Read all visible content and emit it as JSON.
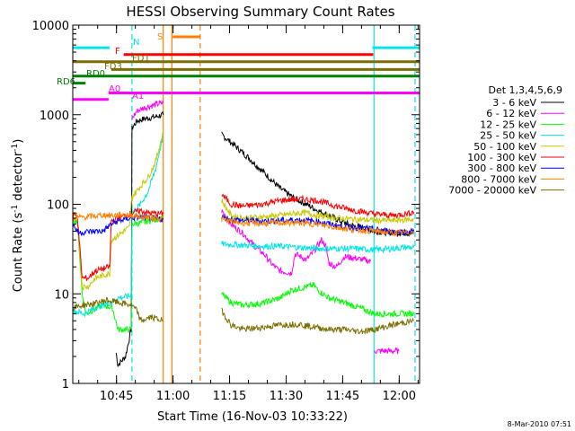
{
  "chart_data": {
    "type": "line",
    "title": "HESSI Observing Summary Count Rates",
    "xlabel": "Start Time (16-Nov-03 10:33:22)",
    "ylabel": "Count Rate (s⁻¹ detector⁻¹)",
    "footer": "8-Mar-2010 07:51",
    "x_units": "minutes after 10:33:22",
    "xlim": [
      0,
      92
    ],
    "ylim": [
      1,
      10000
    ],
    "y_scale": "log",
    "x_ticks": [
      {
        "label": "10:45",
        "t": 11.6
      },
      {
        "label": "11:00",
        "t": 26.6
      },
      {
        "label": "11:15",
        "t": 41.6
      },
      {
        "label": "11:30",
        "t": 56.6
      },
      {
        "label": "11:45",
        "t": 71.6
      },
      {
        "label": "12:00",
        "t": 86.6
      }
    ],
    "y_ticks": [
      {
        "label": "1",
        "v": 1
      },
      {
        "label": "10",
        "v": 10
      },
      {
        "label": "100",
        "v": 100
      },
      {
        "label": "1000",
        "v": 1000
      },
      {
        "label": "10000",
        "v": 10000
      }
    ],
    "legend": {
      "position": "right",
      "title": "Det 1,3,4,5,6,9",
      "entries": [
        "3 - 6 keV",
        "6 - 12 keV",
        "12 - 25 keV",
        "25 - 50 keV",
        "50 - 100 keV",
        "100 - 300 keV",
        "300 - 800 keV",
        "800 - 7000 keV",
        "7000 - 20000 keV"
      ]
    },
    "flag_bars": [
      {
        "label": "N",
        "color": "#00e5e5",
        "value": 5600,
        "segments": [
          [
            0,
            9.8
          ],
          [
            79.5,
            92
          ]
        ]
      },
      {
        "label": "S",
        "color": "#ff8000",
        "value": 7400,
        "segments": [
          [
            26.5,
            33.9
          ]
        ]
      },
      {
        "label": "F",
        "color": "#ff0000",
        "value": 4700,
        "segments": [
          [
            13.5,
            79.7
          ]
        ]
      },
      {
        "label": "FD1",
        "color": "#7a6e00",
        "value": 3900,
        "segments": [
          [
            0,
            92
          ]
        ]
      },
      {
        "label": "FD3",
        "color": "#7a6e00",
        "value": 3200,
        "segments": [
          [
            10.2,
            92
          ]
        ]
      },
      {
        "label": "RD0",
        "color": "#008000",
        "value": 2700,
        "segments": [
          [
            0,
            92
          ]
        ]
      },
      {
        "label": "RD6",
        "color": "#008000",
        "value": 2250,
        "segments": [
          [
            0,
            3.4
          ]
        ]
      },
      {
        "label": "A0",
        "color": "#ff00ff",
        "value": 1750,
        "segments": [
          [
            9.5,
            92
          ]
        ]
      },
      {
        "label": "A1",
        "color": "#ff00ff",
        "value": 1480,
        "segments": [
          [
            0,
            9.5
          ]
        ]
      }
    ],
    "vertical_markers": [
      {
        "t": 15.7,
        "color": "#00e5e5",
        "style": "dashed"
      },
      {
        "t": 24.0,
        "color": "#ff8000",
        "style": "solid"
      },
      {
        "t": 26.3,
        "color": "#ff8000",
        "style": "solid"
      },
      {
        "t": 33.8,
        "color": "#ff8000",
        "style": "dashed"
      },
      {
        "t": 79.9,
        "color": "#00e5e5",
        "style": "solid"
      },
      {
        "t": 90.8,
        "color": "#00e5e5",
        "style": "dashed"
      }
    ],
    "series": [
      {
        "color": "#000000",
        "points": [
          [
            11.5,
            2.2
          ],
          [
            12,
            1.6
          ],
          [
            14,
            2
          ],
          [
            15.5,
            4
          ],
          [
            15.7,
            700
          ],
          [
            17,
            850
          ],
          [
            19,
            900
          ],
          [
            22,
            950
          ],
          [
            24,
            1000
          ],
          null,
          [
            39.5,
            600
          ],
          [
            43,
            450
          ],
          [
            47,
            320
          ],
          [
            51,
            220
          ],
          [
            55,
            150
          ],
          [
            59,
            115
          ],
          [
            62,
            100
          ],
          [
            65,
            85
          ],
          [
            68,
            75
          ],
          [
            71,
            65
          ],
          [
            74,
            58
          ],
          [
            77,
            55
          ],
          [
            80,
            50
          ],
          [
            85,
            48
          ],
          [
            88,
            48
          ],
          [
            90.5,
            47
          ]
        ]
      },
      {
        "color": "#ff00ff",
        "points": [
          [
            15.7,
            900
          ],
          [
            17,
            1100
          ],
          [
            19,
            1200
          ],
          [
            22,
            1300
          ],
          [
            24,
            1350
          ],
          null,
          [
            39.5,
            85
          ],
          [
            42,
            60
          ],
          [
            45,
            48
          ],
          [
            48,
            35
          ],
          [
            51,
            27
          ],
          [
            53,
            21
          ],
          [
            55,
            18
          ],
          [
            58,
            17
          ],
          [
            59,
            28
          ],
          [
            62,
            24
          ],
          [
            64,
            30
          ],
          [
            66,
            40
          ],
          [
            67,
            35
          ],
          [
            68,
            22
          ],
          [
            70,
            20
          ],
          [
            72,
            26
          ],
          [
            75,
            25
          ],
          [
            77,
            24
          ],
          [
            79,
            23
          ],
          null,
          [
            80,
            2.3
          ],
          [
            85,
            2.3
          ],
          [
            86.5,
            2.3
          ]
        ]
      },
      {
        "color": "#00ff00",
        "points": [
          [
            0,
            68
          ],
          [
            1.2,
            65
          ],
          [
            2.5,
            10
          ],
          [
            3.5,
            6
          ],
          [
            8,
            7.5
          ],
          [
            10.5,
            7
          ],
          [
            12,
            4
          ],
          [
            15.5,
            4
          ],
          [
            15.7,
            60
          ],
          [
            18,
            62
          ],
          [
            20,
            65
          ],
          [
            22,
            68
          ],
          [
            24,
            70
          ],
          null,
          [
            39.5,
            10
          ],
          [
            42,
            8
          ],
          [
            45,
            7.5
          ],
          [
            50,
            7.8
          ],
          [
            55,
            9
          ],
          [
            58,
            11
          ],
          [
            62,
            12
          ],
          [
            64,
            12.5
          ],
          [
            65,
            11
          ],
          [
            68,
            9
          ],
          [
            72,
            8
          ],
          [
            76,
            7
          ],
          [
            80,
            6
          ],
          [
            85,
            6
          ],
          [
            88,
            6
          ],
          [
            90.5,
            6
          ]
        ]
      },
      {
        "color": "#00e5e5",
        "points": [
          [
            0,
            6.5
          ],
          [
            3,
            6
          ],
          [
            6,
            7
          ],
          [
            8,
            7.5
          ],
          [
            10,
            8
          ],
          [
            12,
            9
          ],
          [
            15.5,
            9.5
          ],
          [
            15.7,
            80
          ],
          [
            18,
            100
          ],
          [
            20,
            140
          ],
          [
            22,
            250
          ],
          [
            24,
            600
          ],
          null,
          [
            39.5,
            36
          ],
          [
            45,
            35
          ],
          [
            50,
            34
          ],
          [
            55,
            34
          ],
          [
            60,
            33
          ],
          [
            65,
            32
          ],
          [
            70,
            32
          ],
          [
            75,
            32
          ],
          [
            80,
            31
          ],
          [
            85,
            32
          ],
          [
            88,
            33
          ],
          [
            90.5,
            33
          ]
        ]
      },
      {
        "color": "#c8c800",
        "points": [
          [
            0,
            75
          ],
          [
            1.2,
            74
          ],
          [
            2.5,
            12
          ],
          [
            4,
            12
          ],
          [
            6,
            15
          ],
          [
            8,
            16
          ],
          [
            9.8,
            17
          ],
          [
            10.2,
            40
          ],
          [
            12,
            45
          ],
          [
            15,
            55
          ],
          [
            15.7,
            120
          ],
          [
            18,
            160
          ],
          [
            20,
            200
          ],
          [
            22,
            300
          ],
          [
            24,
            650
          ],
          null,
          [
            39.5,
            110
          ],
          [
            42,
            75
          ],
          [
            45,
            70
          ],
          [
            50,
            72
          ],
          [
            55,
            75
          ],
          [
            58,
            78
          ],
          [
            60,
            80
          ],
          [
            62,
            80
          ],
          [
            65,
            75
          ],
          [
            70,
            70
          ],
          [
            75,
            68
          ],
          [
            80,
            66
          ],
          [
            85,
            66
          ],
          [
            88,
            67
          ],
          [
            90.5,
            68
          ]
        ]
      },
      {
        "color": "#ff0000",
        "points": [
          [
            0,
            75
          ],
          [
            1.2,
            75
          ],
          [
            2.5,
            15
          ],
          [
            4,
            15
          ],
          [
            6,
            18
          ],
          [
            8,
            19
          ],
          [
            9.8,
            20
          ],
          [
            10.2,
            65
          ],
          [
            12,
            70
          ],
          [
            15,
            78
          ],
          [
            15.7,
            80
          ],
          [
            18,
            85
          ],
          [
            20,
            80
          ],
          [
            24,
            78
          ],
          null,
          [
            39.5,
            130
          ],
          [
            42,
            100
          ],
          [
            45,
            95
          ],
          [
            50,
            100
          ],
          [
            55,
            110
          ],
          [
            60,
            115
          ],
          [
            65,
            110
          ],
          [
            70,
            95
          ],
          [
            75,
            85
          ],
          [
            80,
            78
          ],
          [
            85,
            75
          ],
          [
            88,
            78
          ],
          [
            90.5,
            82
          ]
        ]
      },
      {
        "color": "#0000ff",
        "points": [
          [
            0,
            60
          ],
          [
            1.5,
            48
          ],
          [
            3,
            49
          ],
          [
            6,
            50
          ],
          [
            8,
            50
          ],
          [
            10.2,
            60
          ],
          [
            12,
            65
          ],
          [
            15,
            70
          ],
          [
            18,
            72
          ],
          [
            20,
            70
          ],
          [
            24,
            68
          ],
          null,
          [
            39.5,
            72
          ],
          [
            42,
            68
          ],
          [
            45,
            66
          ],
          [
            50,
            65
          ],
          [
            55,
            66
          ],
          [
            60,
            67
          ],
          [
            65,
            64
          ],
          [
            70,
            58
          ],
          [
            75,
            55
          ],
          [
            80,
            52
          ],
          [
            85,
            50
          ],
          [
            88,
            49
          ],
          [
            90.5,
            50
          ]
        ]
      },
      {
        "color": "#ff8000",
        "points": [
          [
            0,
            70
          ],
          [
            3,
            72
          ],
          [
            6,
            74
          ],
          [
            8,
            76
          ],
          [
            10.2,
            75
          ],
          [
            12,
            76
          ],
          [
            15,
            76
          ],
          [
            17,
            74
          ],
          [
            19,
            72
          ],
          [
            22,
            70
          ],
          [
            24,
            70
          ],
          null,
          [
            39.5,
            68
          ],
          [
            42,
            64
          ],
          [
            45,
            62
          ],
          [
            50,
            61
          ],
          [
            55,
            62
          ],
          [
            60,
            62
          ],
          [
            65,
            60
          ],
          [
            70,
            55
          ],
          [
            75,
            52
          ],
          [
            80,
            50
          ],
          [
            85,
            48
          ],
          [
            88,
            48
          ],
          [
            90.5,
            49
          ]
        ]
      },
      {
        "color": "#7a6e00",
        "points": [
          [
            0,
            7
          ],
          [
            3,
            7.5
          ],
          [
            6,
            7.8
          ],
          [
            9,
            8.5
          ],
          [
            12,
            8
          ],
          [
            15.5,
            7.5
          ],
          [
            17,
            6.5
          ],
          [
            18,
            5
          ],
          [
            21,
            5.5
          ],
          [
            24,
            5
          ],
          null,
          [
            39.5,
            6.5
          ],
          [
            42,
            4.5
          ],
          [
            45,
            4
          ],
          [
            50,
            4.2
          ],
          [
            55,
            4.5
          ],
          [
            60,
            4.6
          ],
          [
            62,
            4.4
          ],
          [
            65,
            4.2
          ],
          [
            68,
            4
          ],
          [
            72,
            4
          ],
          [
            76,
            3.8
          ],
          [
            80,
            4
          ],
          [
            85,
            4.5
          ],
          [
            88,
            4.8
          ],
          [
            90.5,
            5
          ]
        ]
      }
    ]
  }
}
